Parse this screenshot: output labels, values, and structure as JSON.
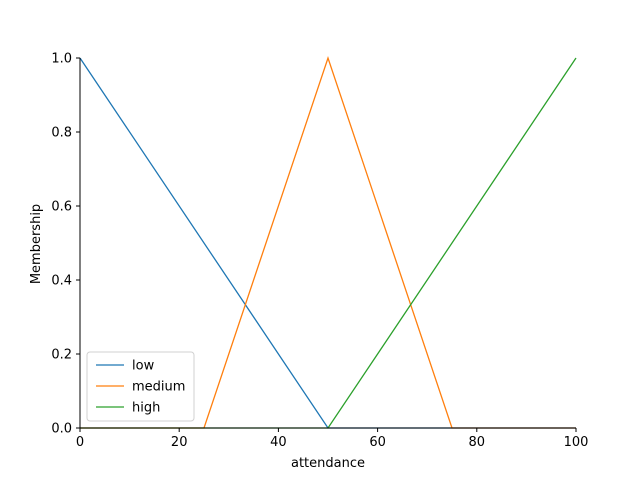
{
  "chart_data": {
    "type": "line",
    "title": "",
    "xlabel": "attendance",
    "ylabel": "Membership",
    "xlim": [
      0,
      100
    ],
    "ylim": [
      0,
      1
    ],
    "xticks": [
      0,
      20,
      40,
      60,
      80,
      100
    ],
    "yticks": [
      0.0,
      0.2,
      0.4,
      0.6,
      0.8,
      1.0
    ],
    "xtick_labels": [
      "0",
      "20",
      "40",
      "60",
      "80",
      "100"
    ],
    "ytick_labels": [
      "0.0",
      "0.2",
      "0.4",
      "0.6",
      "0.8",
      "1.0"
    ],
    "grid": false,
    "legend_position": "lower-left",
    "series": [
      {
        "name": "low",
        "color": "#1f77b4",
        "x": [
          0,
          50,
          100
        ],
        "y": [
          1,
          0,
          0
        ]
      },
      {
        "name": "medium",
        "color": "#ff7f0e",
        "x": [
          0,
          25,
          50,
          75,
          100
        ],
        "y": [
          0,
          0,
          1,
          0,
          0
        ]
      },
      {
        "name": "high",
        "color": "#2ca02c",
        "x": [
          0,
          50,
          100
        ],
        "y": [
          0,
          0,
          1
        ]
      }
    ]
  }
}
